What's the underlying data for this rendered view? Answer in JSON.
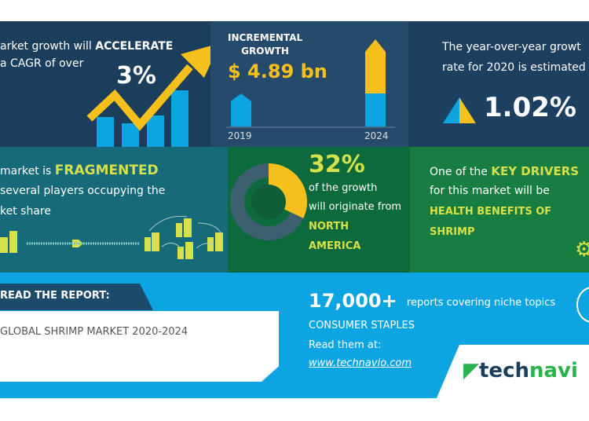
{
  "cagr": {
    "line1_prefix": "arket growth will ",
    "line1_emph": "ACCELERATE",
    "line2": "a CAGR of over",
    "value": "3%"
  },
  "incremental": {
    "title1": "INCREMENTAL",
    "title2": "GROWTH",
    "value": "$ 4.89 bn",
    "year_start": "2019",
    "year_end": "2024"
  },
  "yoy": {
    "line1": "The year-over-year growt",
    "line2": "rate for 2020 is estimated",
    "value": "1.02%"
  },
  "fragmented": {
    "line1_prefix": "market is ",
    "line1_emph": "FRAGMENTED",
    "line2": "several players occupying the",
    "line3": "ket share"
  },
  "region": {
    "value": "32%",
    "line1": "of the growth",
    "line2": "will originate from",
    "region1": "NORTH",
    "region2": "AMERICA",
    "share_percent": 32
  },
  "drivers": {
    "line1_prefix": "One of the ",
    "line1_emph": "KEY DRIVERS",
    "line2": "for this market will be",
    "driver1": "HEALTH BENEFITS OF",
    "driver2": "SHRIMP"
  },
  "report": {
    "tab_label": "READ THE REPORT:",
    "title": "GLOBAL SHRIMP MARKET 2020-2024"
  },
  "promo": {
    "count": "17,000+",
    "count_text": "reports covering niche topics",
    "category": "CONSUMER STAPLES",
    "read_at": "Read them at:",
    "link": "www.technavio.com"
  },
  "logo": {
    "part1": "tech",
    "part2": "navi"
  },
  "colors": {
    "navy": "#1c3e5d",
    "yellow": "#f5bf1c",
    "blue": "#0ca4e1",
    "green": "#0d6a3c"
  }
}
